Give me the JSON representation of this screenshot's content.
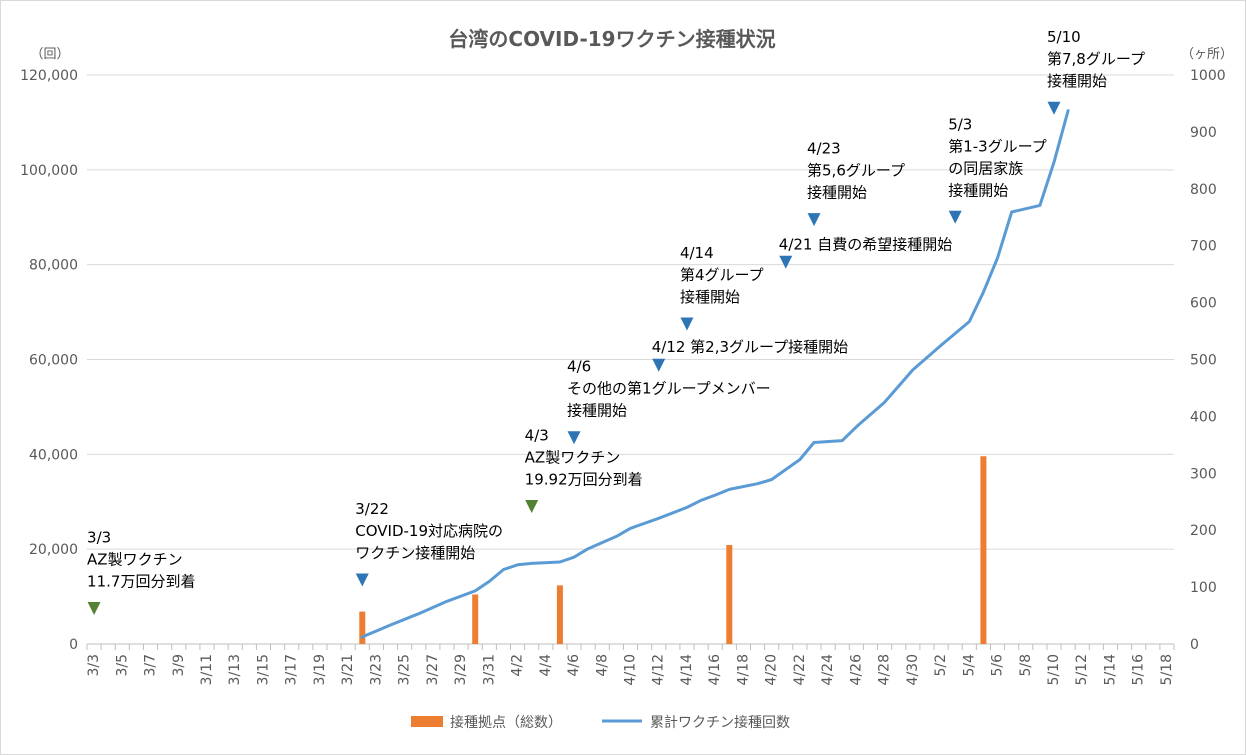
{
  "chart_data": {
    "type": "bar+line",
    "title": "台湾のCOVID-19ワクチン接種状況",
    "y_left": {
      "unit": "（回）",
      "range": [
        0,
        120000
      ],
      "ticks": [
        "0",
        "20,000",
        "40,000",
        "60,000",
        "80,000",
        "100,000",
        "120,000"
      ],
      "values": [
        0,
        20000,
        40000,
        60000,
        80000,
        100000,
        120000
      ]
    },
    "y_right": {
      "unit": "（ヶ所）",
      "range": [
        0,
        1000
      ],
      "ticks": [
        "0",
        "100",
        "200",
        "300",
        "400",
        "500",
        "600",
        "700",
        "800",
        "900",
        "1000"
      ],
      "values": [
        0,
        100,
        200,
        300,
        400,
        500,
        600,
        700,
        800,
        900,
        1000
      ]
    },
    "grid": true,
    "legend_position": "bottom",
    "x_start": "3/3",
    "x_days": 77,
    "x_tick_labels": [
      "3/3",
      "3/5",
      "3/7",
      "3/9",
      "3/11",
      "3/13",
      "3/15",
      "3/17",
      "3/19",
      "3/21",
      "3/23",
      "3/25",
      "3/27",
      "3/29",
      "3/31",
      "4/2",
      "4/4",
      "4/6",
      "4/8",
      "4/10",
      "4/12",
      "4/14",
      "4/16",
      "4/18",
      "4/20",
      "4/22",
      "4/24",
      "4/26",
      "4/28",
      "4/30",
      "5/2",
      "5/4",
      "5/6",
      "5/8",
      "5/10",
      "5/12",
      "5/14",
      "5/16",
      "5/18"
    ],
    "series": [
      {
        "name": "接種拠点（総数）",
        "type": "bar",
        "axis": "right",
        "color": "#ED7D31",
        "points": [
          {
            "x": "3/22",
            "y": 57
          },
          {
            "x": "3/30",
            "y": 87
          },
          {
            "x": "4/5",
            "y": 103
          },
          {
            "x": "4/17",
            "y": 174
          },
          {
            "x": "5/5",
            "y": 330
          }
        ]
      },
      {
        "name": "累計ワクチン接種回数",
        "type": "line",
        "axis": "left",
        "color": "#5B9BD5",
        "points": [
          {
            "x": "3/22",
            "y": 1500
          },
          {
            "x": "3/24",
            "y": 4000
          },
          {
            "x": "3/26",
            "y": 6400
          },
          {
            "x": "3/28",
            "y": 9000
          },
          {
            "x": "3/30",
            "y": 11200
          },
          {
            "x": "3/31",
            "y": 13200
          },
          {
            "x": "4/1",
            "y": 15700
          },
          {
            "x": "4/2",
            "y": 16700
          },
          {
            "x": "4/3",
            "y": 17000
          },
          {
            "x": "4/5",
            "y": 17300
          },
          {
            "x": "4/6",
            "y": 18300
          },
          {
            "x": "4/7",
            "y": 20100
          },
          {
            "x": "4/9",
            "y": 22700
          },
          {
            "x": "4/10",
            "y": 24400
          },
          {
            "x": "4/12",
            "y": 26500
          },
          {
            "x": "4/14",
            "y": 28800
          },
          {
            "x": "4/15",
            "y": 30300
          },
          {
            "x": "4/16",
            "y": 31400
          },
          {
            "x": "4/17",
            "y": 32600
          },
          {
            "x": "4/19",
            "y": 33800
          },
          {
            "x": "4/20",
            "y": 34700
          },
          {
            "x": "4/22",
            "y": 38900
          },
          {
            "x": "4/23",
            "y": 42500
          },
          {
            "x": "4/25",
            "y": 42900
          },
          {
            "x": "4/26",
            "y": 45800
          },
          {
            "x": "4/28",
            "y": 51000
          },
          {
            "x": "4/30",
            "y": 57800
          },
          {
            "x": "5/2",
            "y": 63000
          },
          {
            "x": "5/4",
            "y": 68000
          },
          {
            "x": "5/5",
            "y": 74200
          },
          {
            "x": "5/6",
            "y": 81400
          },
          {
            "x": "5/7",
            "y": 91100
          },
          {
            "x": "5/9",
            "y": 92500
          },
          {
            "x": "5/10",
            "y": 101600
          },
          {
            "x": "5/11",
            "y": 112500
          }
        ]
      }
    ],
    "annotations": [
      {
        "x": "3/3",
        "y": 7500,
        "marker": "green",
        "lines": [
          "3/3",
          "AZ製ワクチン",
          "11.7万回分到着"
        ]
      },
      {
        "x": "3/22",
        "y": 13500,
        "marker": "blue",
        "lines": [
          "3/22",
          "COVID-19対応病院の",
          "ワクチン接種開始"
        ]
      },
      {
        "x": "4/3",
        "y": 29000,
        "marker": "green",
        "lines": [
          "4/3",
          "AZ製ワクチン",
          "19.92万回分到着"
        ]
      },
      {
        "x": "4/6",
        "y": 43500,
        "marker": "blue",
        "lines": [
          "4/6",
          "その他の第1グループメンバー",
          "接種開始"
        ]
      },
      {
        "x": "4/12",
        "y": 58800,
        "marker": "blue",
        "lines": [
          "4/12 第2,3グループ接種開始"
        ]
      },
      {
        "x": "4/14",
        "y": 67500,
        "marker": "blue",
        "lines": [
          "4/14",
          "第4グループ",
          "接種開始"
        ]
      },
      {
        "x": "4/21",
        "y": 80500,
        "marker": "blue",
        "lines": [
          "4/21 自費の希望接種開始"
        ]
      },
      {
        "x": "4/23",
        "y": 89500,
        "marker": "blue",
        "lines": [
          "4/23",
          "第5,6グループ",
          "接種開始"
        ]
      },
      {
        "x": "5/3",
        "y": 90000,
        "marker": "blue",
        "lines": [
          "5/3",
          "第1-3グループ",
          "の同居家族",
          "接種開始"
        ]
      },
      {
        "x": "5/10",
        "y": 113000,
        "marker": "blue",
        "lines": [
          "5/10",
          "第7,8グループ",
          "接種開始"
        ]
      }
    ]
  }
}
